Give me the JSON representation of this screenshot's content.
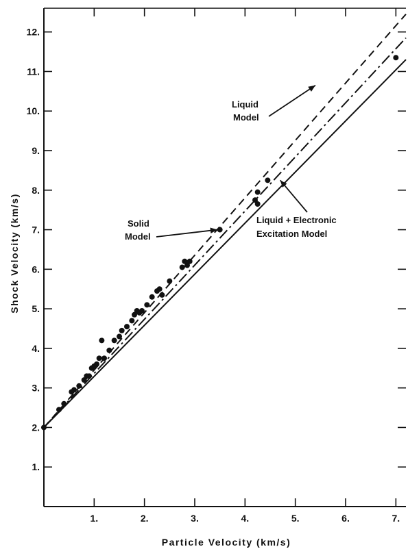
{
  "chart_data": {
    "type": "scatter",
    "xlabel": "Particle Velocity   (km/s)",
    "ylabel": "Shock Velocity   (km/s)",
    "xlim": [
      0,
      7.2
    ],
    "ylim": [
      0,
      12.6
    ],
    "x_ticks": [
      {
        "value": 1,
        "label": "1."
      },
      {
        "value": 2,
        "label": "2."
      },
      {
        "value": 3,
        "label": "3."
      },
      {
        "value": 4,
        "label": "4."
      },
      {
        "value": 5,
        "label": "5."
      },
      {
        "value": 6,
        "label": "6."
      },
      {
        "value": 7,
        "label": "7."
      }
    ],
    "y_ticks": [
      {
        "value": 1,
        "label": "1."
      },
      {
        "value": 2,
        "label": "2."
      },
      {
        "value": 3,
        "label": "3."
      },
      {
        "value": 4,
        "label": "4."
      },
      {
        "value": 5,
        "label": "5."
      },
      {
        "value": 6,
        "label": "6."
      },
      {
        "value": 7,
        "label": "7."
      },
      {
        "value": 8,
        "label": "8."
      },
      {
        "value": 9,
        "label": "9."
      },
      {
        "value": 10,
        "label": "10."
      },
      {
        "value": 11,
        "label": "11."
      },
      {
        "value": 12,
        "label": "12."
      }
    ],
    "series": [
      {
        "line_style": "dashed",
        "x": [
          0,
          7.2
        ],
        "y": [
          2.0,
          12.45
        ]
      },
      {
        "line_style": "dash-dot",
        "x": [
          0,
          7.2
        ],
        "y": [
          2.0,
          11.85
        ]
      },
      {
        "line_style": "solid",
        "x": [
          0,
          7.2
        ],
        "y": [
          2.0,
          11.3
        ]
      },
      {
        "line_style": "markers",
        "x": [
          0.0,
          0.3,
          0.4,
          0.55,
          0.6,
          0.7,
          0.8,
          0.85,
          0.9,
          0.95,
          1.0,
          1.05,
          1.1,
          1.15,
          1.2,
          1.3,
          1.4,
          1.5,
          1.55,
          1.65,
          1.75,
          1.8,
          1.85,
          1.9,
          1.95,
          2.05,
          2.15,
          2.25,
          2.3,
          2.35,
          2.5,
          2.75,
          2.8,
          2.85,
          2.9,
          3.5,
          4.2,
          4.25,
          4.25,
          4.45,
          7.0
        ],
        "y": [
          2.0,
          2.45,
          2.6,
          2.9,
          2.95,
          3.05,
          3.2,
          3.3,
          3.3,
          3.5,
          3.55,
          3.6,
          3.75,
          4.2,
          3.75,
          3.95,
          4.2,
          4.3,
          4.45,
          4.55,
          4.7,
          4.85,
          4.95,
          4.9,
          4.95,
          5.1,
          5.3,
          5.45,
          5.5,
          5.35,
          5.7,
          6.05,
          6.2,
          6.1,
          6.2,
          7.0,
          7.75,
          7.95,
          7.65,
          8.25,
          11.35
        ]
      }
    ],
    "annotations": [
      {
        "lines": [
          "Liquid",
          "Model"
        ],
        "arrow_to": [
          5.4,
          10.65
        ]
      },
      {
        "lines": [
          "Solid",
          "Model"
        ],
        "arrow_to": [
          3.45,
          7.0
        ]
      },
      {
        "lines": [
          "Liquid + Electronic",
          "Excitation  Model"
        ],
        "arrow_to": [
          4.7,
          8.25
        ]
      }
    ]
  }
}
